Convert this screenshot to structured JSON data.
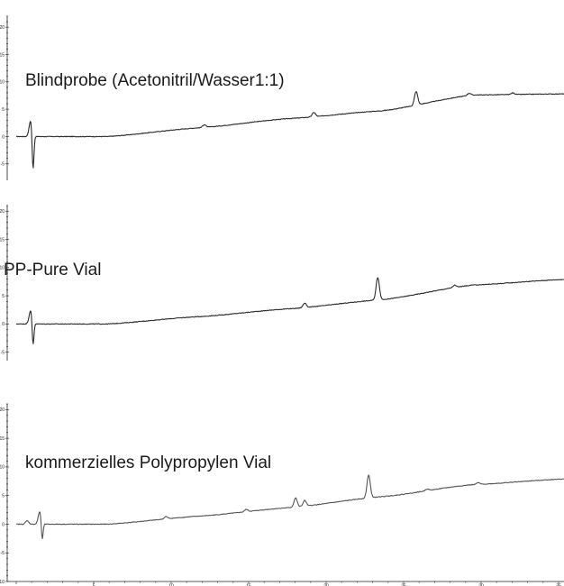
{
  "chart_data": [
    {
      "type": "line",
      "title": "Blindprobe (Acetonitril/Wasser1:1)",
      "yticks": [
        "20",
        "15",
        "10",
        "5",
        "0",
        "-5"
      ],
      "ylim": [
        -8,
        22
      ],
      "xlim": [
        0,
        30
      ],
      "line_color": "#2b2b2b",
      "series": [
        {
          "x": [
            0,
            2,
            5,
            10,
            15,
            20,
            25,
            30
          ],
          "y": [
            0,
            0,
            0,
            1.6,
            3.3,
            4.7,
            7.6,
            7.8
          ]
        }
      ],
      "peaks": [
        {
          "x": 0.8,
          "up": 3.0,
          "down": -7.0
        },
        {
          "x": 10.3,
          "up": 0.5
        },
        {
          "x": 16.3,
          "up": 0.8
        },
        {
          "x": 21.9,
          "up": 2.5
        },
        {
          "x": 24.8,
          "up": 0.4
        },
        {
          "x": 27.2,
          "up": 0.3
        }
      ]
    },
    {
      "type": "line",
      "title": "PP-Pure Vial",
      "yticks": [
        "20",
        "15",
        "10",
        "5",
        "0",
        "-5"
      ],
      "ylim": [
        -6.5,
        21
      ],
      "xlim": [
        0,
        30
      ],
      "line_color": "#2b2b2b",
      "series": [
        {
          "x": [
            0,
            2,
            5,
            10,
            15,
            20,
            25,
            30
          ],
          "y": [
            0,
            0,
            0,
            1.3,
            2.7,
            4.3,
            6.9,
            7.9
          ]
        }
      ],
      "peaks": [
        {
          "x": 0.8,
          "up": 2.5,
          "down": -4.5
        },
        {
          "x": 15.8,
          "up": 0.8
        },
        {
          "x": 19.8,
          "up": 4.0
        },
        {
          "x": 24.0,
          "up": 0.4
        }
      ]
    },
    {
      "type": "line",
      "title": "kommerzielles Polypropylen Vial",
      "yticks": [
        "20",
        "15",
        "10",
        "5",
        "0",
        "-5",
        "-10"
      ],
      "ylim": [
        -10,
        21
      ],
      "xlim": [
        0,
        30
      ],
      "xticks": [
        "5",
        "10",
        "15",
        "20",
        "25",
        "30",
        "35"
      ],
      "line_color": "#555555",
      "series": [
        {
          "x": [
            0,
            2,
            5,
            10,
            15,
            20,
            25,
            30
          ],
          "y": [
            0,
            0,
            0,
            1.4,
            2.9,
            4.8,
            6.9,
            7.9
          ]
        }
      ],
      "peaks": [
        {
          "x": 0.6,
          "up": 0.6
        },
        {
          "x": 1.3,
          "up": 2.3,
          "down": -3.4
        },
        {
          "x": 8.2,
          "up": 0.4
        },
        {
          "x": 12.6,
          "up": 0.4
        },
        {
          "x": 15.3,
          "up": 1.6
        },
        {
          "x": 15.8,
          "up": 1.0
        },
        {
          "x": 19.3,
          "up": 4.0
        },
        {
          "x": 22.5,
          "up": 0.3
        },
        {
          "x": 25.3,
          "up": 0.3
        }
      ]
    }
  ]
}
